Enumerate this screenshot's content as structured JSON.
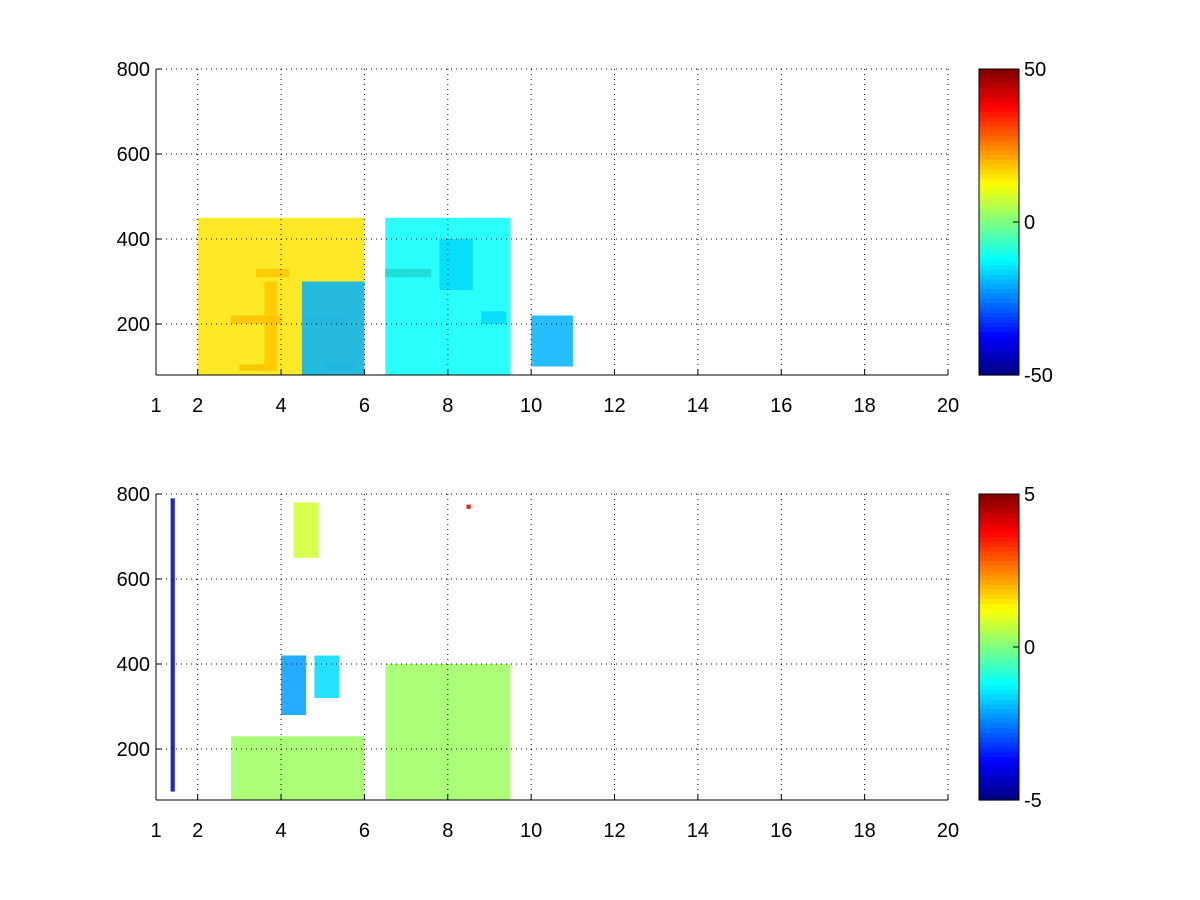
{
  "chart_data": [
    {
      "type": "heatmap",
      "title": "",
      "xlabel": "",
      "ylabel": "",
      "xlim": [
        1,
        20
      ],
      "ylim": [
        80,
        800
      ],
      "x_ticks": [
        1,
        2,
        4,
        6,
        8,
        10,
        12,
        14,
        16,
        18,
        20
      ],
      "y_ticks": [
        200,
        400,
        600,
        800
      ],
      "grid": true,
      "colormap": "jet",
      "colorbar": {
        "min": -50,
        "max": 50,
        "ticks": [
          50,
          0,
          -50
        ]
      },
      "regions": [
        {
          "x": [
            3.0,
            3.8
          ],
          "y": [
            90,
            105
          ],
          "value": 45
        },
        {
          "x": [
            3.6,
            3.9
          ],
          "y": [
            90,
            300
          ],
          "value": 35
        },
        {
          "x": [
            2.8,
            4.0
          ],
          "y": [
            200,
            220
          ],
          "value": 40
        },
        {
          "x": [
            3.4,
            4.2
          ],
          "y": [
            310,
            330
          ],
          "value": 35
        },
        {
          "x": [
            5.0,
            5.8
          ],
          "y": [
            90,
            110
          ],
          "value": -45
        },
        {
          "x": [
            4.6,
            5.6
          ],
          "y": [
            200,
            220
          ],
          "value": -35
        },
        {
          "x": [
            6.5,
            7.6
          ],
          "y": [
            310,
            330
          ],
          "value": 45
        },
        {
          "x": [
            7.8,
            8.6
          ],
          "y": [
            280,
            400
          ],
          "value": -40
        },
        {
          "x": [
            8.8,
            9.4
          ],
          "y": [
            200,
            230
          ],
          "value": -40
        },
        {
          "x": [
            2.0,
            6.0
          ],
          "y": [
            80,
            450
          ],
          "value": 15
        },
        {
          "x": [
            4.5,
            6.0
          ],
          "y": [
            80,
            300
          ],
          "value": -20
        },
        {
          "x": [
            6.5,
            9.5
          ],
          "y": [
            80,
            450
          ],
          "value": -12
        },
        {
          "x": [
            10.0,
            11.0
          ],
          "y": [
            100,
            220
          ],
          "value": -20
        }
      ]
    },
    {
      "type": "heatmap",
      "title": "",
      "xlabel": "",
      "ylabel": "",
      "xlim": [
        1,
        20
      ],
      "ylim": [
        80,
        800
      ],
      "x_ticks": [
        1,
        2,
        4,
        6,
        8,
        10,
        12,
        14,
        16,
        18,
        20
      ],
      "y_ticks": [
        200,
        400,
        600,
        800
      ],
      "grid": true,
      "colormap": "jet",
      "colorbar": {
        "min": -5,
        "max": 5,
        "ticks": [
          5,
          0,
          -5
        ]
      },
      "regions": [
        {
          "x": [
            1.35,
            1.45
          ],
          "y": [
            100,
            790
          ],
          "value": -4.5
        },
        {
          "x": [
            2.8,
            6.0
          ],
          "y": [
            80,
            230
          ],
          "value": 0.3
        },
        {
          "x": [
            6.5,
            9.5
          ],
          "y": [
            80,
            400
          ],
          "value": 0.3
        },
        {
          "x": [
            4.0,
            4.6
          ],
          "y": [
            280,
            420
          ],
          "value": -2.2
        },
        {
          "x": [
            4.8,
            5.4
          ],
          "y": [
            320,
            420
          ],
          "value": -1.6
        },
        {
          "x": [
            4.3,
            4.9
          ],
          "y": [
            650,
            780
          ],
          "value": 0.8
        },
        {
          "x": [
            8.45,
            8.55
          ],
          "y": [
            765,
            775
          ],
          "value": 4.0
        }
      ]
    }
  ]
}
